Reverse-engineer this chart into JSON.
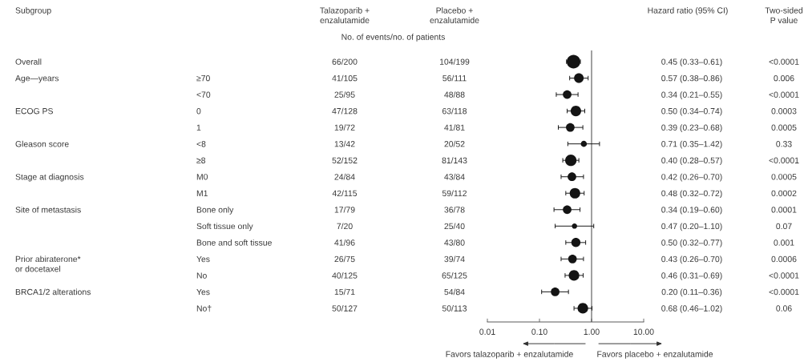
{
  "chart_data": [
    {
      "type": "other",
      "title": "Subgroup",
      "categories": [
        "Overall",
        "Age—years",
        null,
        "ECOG PS",
        null,
        "Gleason score",
        null,
        "Stage at diagnosis",
        null,
        "Site of metastasis",
        null,
        null,
        "Prior abiraterone*\nor docetaxel",
        null,
        "BRCA1/2 alterations",
        null
      ]
    },
    {
      "type": "other",
      "categories": [
        null,
        "≥70",
        "<70",
        "0",
        "1",
        "<8",
        "≥8",
        "M0",
        "M1",
        "Bone only",
        "Soft tissue only",
        "Bone and soft tissue",
        "Yes",
        "No",
        "Yes",
        "No†"
      ]
    },
    {
      "type": "other",
      "title": "Talazoparib +\nenzalutamide",
      "subtitle": "No. of events/no. of patients",
      "categories": [
        "66/200",
        "41/105",
        "25/95",
        "47/128",
        "19/72",
        "13/42",
        "52/152",
        "24/84",
        "42/115",
        "17/79",
        "7/20",
        "41/96",
        "26/75",
        "40/125",
        "15/71",
        "50/127"
      ]
    },
    {
      "type": "other",
      "title": "Placebo +\nenzalutamide",
      "categories": [
        "104/199",
        "56/111",
        "48/88",
        "63/118",
        "41/81",
        "20/52",
        "81/143",
        "43/84",
        "59/112",
        "36/78",
        "25/40",
        "43/80",
        "39/74",
        "65/125",
        "54/84",
        "50/113"
      ]
    },
    {
      "type": "bubble",
      "orientation": "horizontal",
      "title": "Hazard ratio (95% CI)",
      "categories": [
        null,
        null,
        null,
        null,
        null,
        null,
        null,
        null,
        null,
        null,
        null,
        null,
        null,
        null,
        null,
        null
      ],
      "values": [
        0.45,
        0.57,
        0.34,
        0.5,
        0.39,
        0.71,
        0.4,
        0.42,
        0.48,
        0.34,
        0.47,
        0.5,
        0.43,
        0.46,
        0.2,
        0.68
      ],
      "errors": [
        [
          0.33,
          0.61
        ],
        [
          0.38,
          0.86
        ],
        [
          0.21,
          0.55
        ],
        [
          0.34,
          0.74
        ],
        [
          0.23,
          0.68
        ],
        [
          0.35,
          1.42
        ],
        [
          0.28,
          0.57
        ],
        [
          0.26,
          0.7
        ],
        [
          0.32,
          0.72
        ],
        [
          0.19,
          0.6
        ],
        [
          0.2,
          1.1
        ],
        [
          0.32,
          0.77
        ],
        [
          0.26,
          0.7
        ],
        [
          0.31,
          0.69
        ],
        [
          0.11,
          0.36
        ],
        [
          0.46,
          1.02
        ]
      ],
      "sizes": [
        1,
        0.5,
        0.4,
        0.6,
        0.4,
        0.2,
        0.7,
        0.4,
        0.6,
        0.4,
        0.15,
        0.45,
        0.4,
        0.6,
        0.4,
        0.6
      ],
      "value_labels": [
        "0.45 (0.33–0.61)",
        "0.57 (0.38–0.86)",
        "0.34 (0.21–0.55)",
        "0.50 (0.34–0.74)",
        "0.39 (0.23–0.68)",
        "0.71 (0.35–1.42)",
        "0.40 (0.28–0.57)",
        "0.42 (0.26–0.70)",
        "0.48 (0.32–0.72)",
        "0.34 (0.19–0.60)",
        "0.47 (0.20–1.10)",
        "0.50 (0.32–0.77)",
        "0.43 (0.26–0.70)",
        "0.46 (0.31–0.69)",
        "0.20 (0.11–0.36)",
        "0.68 (0.46–1.02)"
      ],
      "color": "#141414",
      "marker": "circle",
      "log": "x",
      "xlim": [
        0.01,
        10
      ],
      "xticks": [
        {
          "value": 0.01,
          "label": "0.01"
        },
        {
          "value": 0.1,
          "label": "0.10"
        },
        {
          "value": 1,
          "label": "1.00"
        },
        {
          "value": 10,
          "label": "10.00"
        }
      ],
      "tick_labels": "x",
      "ref_lines": [
        {
          "axis": "x",
          "value": 1,
          "color": "#555555"
        }
      ],
      "annotations": [
        "Favors talazoparib + enzalutamide",
        "Favors placebo + enzalutamide"
      ]
    },
    {
      "type": "other",
      "title": "Two-sided\nP value",
      "categories": [
        "<0.0001",
        "0.006",
        "<0.0001",
        "0.0003",
        "0.0005",
        "0.33",
        "<0.0001",
        "0.0005",
        "0.0002",
        "0.0001",
        "0.07",
        "0.001",
        "0.0006",
        "<0.0001",
        "<0.0001",
        "0.06"
      ]
    }
  ]
}
